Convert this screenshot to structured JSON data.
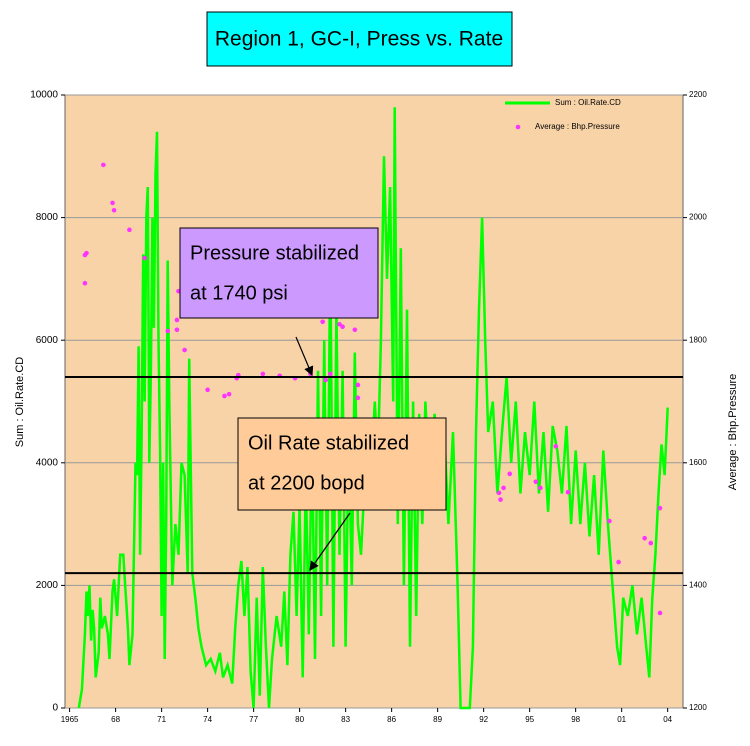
{
  "chart_data": {
    "type": "line",
    "title": "Region 1, GC-I, Press vs. Rate",
    "y_label": "Sum : Oil.Rate.CD",
    "y2_label": "Average : Bhp.Pressure",
    "xlim": [
      1964.7,
      2005.0
    ],
    "xticks": [
      {
        "value": 1965,
        "label": "1965"
      },
      {
        "value": 1968,
        "label": "68"
      },
      {
        "value": 1971,
        "label": "71"
      },
      {
        "value": 1974,
        "label": "74"
      },
      {
        "value": 1977,
        "label": "77"
      },
      {
        "value": 1980,
        "label": "80"
      },
      {
        "value": 1983,
        "label": "83"
      },
      {
        "value": 1986,
        "label": "86"
      },
      {
        "value": 1989,
        "label": "89"
      },
      {
        "value": 1992,
        "label": "92"
      },
      {
        "value": 1995,
        "label": "95"
      },
      {
        "value": 1998,
        "label": "98"
      },
      {
        "value": 2001,
        "label": "01"
      },
      {
        "value": 2004,
        "label": "04"
      }
    ],
    "ylim": [
      0,
      10000
    ],
    "yticks": [
      0,
      2000,
      4000,
      6000,
      8000,
      10000
    ],
    "y2lim": [
      1200,
      2200
    ],
    "y2ticks": [
      1200,
      1400,
      1600,
      1800,
      2000,
      2200
    ],
    "grid": true,
    "legend": "top-right",
    "series": [
      {
        "name": "Sum : Oil.Rate.CD",
        "type": "line",
        "color": "#00ff00",
        "x": [
          1965.6,
          1965.8,
          1966.0,
          1966.1,
          1966.2,
          1966.3,
          1966.4,
          1966.5,
          1966.6,
          1966.7,
          1966.9,
          1967.0,
          1967.1,
          1967.3,
          1967.5,
          1967.6,
          1967.8,
          1967.9,
          1968.1,
          1968.3,
          1968.5,
          1968.6,
          1968.8,
          1968.9,
          1969.1,
          1969.3,
          1969.4,
          1969.5,
          1969.6,
          1969.7,
          1969.8,
          1969.9,
          1970.0,
          1970.1,
          1970.2,
          1970.3,
          1970.4,
          1970.5,
          1970.6,
          1970.7,
          1970.8,
          1970.9,
          1971.0,
          1971.1,
          1971.2,
          1971.3,
          1971.4,
          1971.5,
          1971.6,
          1971.7,
          1971.9,
          1972.1,
          1972.3,
          1972.5,
          1972.7,
          1972.8,
          1972.9,
          1973.0,
          1973.2,
          1973.4,
          1973.6,
          1973.9,
          1974.2,
          1974.5,
          1974.8,
          1975.0,
          1975.3,
          1975.6,
          1975.8,
          1976.0,
          1976.2,
          1976.4,
          1976.6,
          1976.8,
          1977.0,
          1977.2,
          1977.4,
          1977.6,
          1977.8,
          1978.0,
          1978.2,
          1978.5,
          1978.8,
          1979.0,
          1979.2,
          1979.4,
          1979.6,
          1979.8,
          1980.0,
          1980.2,
          1980.4,
          1980.6,
          1980.8,
          1981.0,
          1981.2,
          1981.4,
          1981.6,
          1981.8,
          1982.0,
          1982.2,
          1982.4,
          1982.6,
          1982.8,
          1983.0,
          1983.2,
          1983.4,
          1983.6,
          1983.8,
          1984.0,
          1984.3,
          1984.6,
          1984.9,
          1985.1,
          1985.3,
          1985.5,
          1985.7,
          1985.9,
          1986.1,
          1986.2,
          1986.4,
          1986.6,
          1986.8,
          1987.0,
          1987.2,
          1987.4,
          1987.6,
          1987.8,
          1988.0,
          1988.2,
          1988.5,
          1988.8,
          1989.1,
          1989.4,
          1989.7,
          1990.0,
          1990.3,
          1990.5,
          1990.8,
          1991.1,
          1991.3,
          1991.5,
          1991.7,
          1991.9,
          1992.1,
          1992.3,
          1992.6,
          1992.9,
          1993.2,
          1993.5,
          1993.8,
          1994.1,
          1994.4,
          1994.7,
          1995.0,
          1995.3,
          1995.6,
          1995.9,
          1996.2,
          1996.5,
          1996.8,
          1997.1,
          1997.4,
          1997.7,
          1998.0,
          1998.3,
          1998.6,
          1998.9,
          1999.2,
          1999.5,
          1999.8,
          2000.1,
          2000.4,
          2000.7,
          2000.9,
          2001.1,
          2001.4,
          2001.7,
          2002.0,
          2002.3,
          2002.6,
          2002.8,
          2003.0,
          2003.2,
          2003.4,
          2003.6,
          2003.8,
          2004.0
        ],
        "values": [
          0,
          300,
          1200,
          1900,
          1500,
          2000,
          1100,
          1600,
          1300,
          500,
          900,
          1800,
          1300,
          1500,
          1200,
          800,
          1900,
          2100,
          1500,
          2500,
          2500,
          2100,
          1300,
          700,
          1200,
          4000,
          3800,
          5900,
          2500,
          4500,
          7400,
          5000,
          8000,
          8500,
          4000,
          5500,
          8000,
          6200,
          8700,
          9400,
          6000,
          4200,
          1500,
          4000,
          800,
          3000,
          7300,
          5000,
          3500,
          2000,
          3000,
          2500,
          4000,
          3800,
          2200,
          5700,
          4000,
          2200,
          1800,
          1300,
          1000,
          700,
          800,
          600,
          900,
          500,
          700,
          400,
          1300,
          2000,
          2400,
          1500,
          2300,
          600,
          0,
          1800,
          200,
          2300,
          1000,
          0,
          800,
          1500,
          1000,
          1900,
          700,
          2500,
          3200,
          1500,
          3300,
          500,
          3800,
          1200,
          4500,
          800,
          5500,
          1500,
          6000,
          2000,
          7500,
          1000,
          6500,
          2500,
          5500,
          1000,
          4500,
          2000,
          5800,
          3000,
          2500,
          4000,
          3500,
          5000,
          4000,
          6000,
          9000,
          7000,
          8500,
          5000,
          9800,
          3000,
          7500,
          2000,
          6500,
          1000,
          5000,
          1500,
          4800,
          3000,
          5000,
          3500,
          4800,
          3500,
          4700,
          3000,
          4500,
          2000,
          0,
          0,
          0,
          1000,
          4500,
          6500,
          8000,
          6000,
          4500,
          5000,
          3500,
          4500,
          5400,
          4000,
          5000,
          3500,
          4500,
          3800,
          5000,
          3500,
          4500,
          3200,
          4600,
          4200,
          3500,
          4600,
          3000,
          4200,
          3000,
          4000,
          2800,
          3800,
          2500,
          4200,
          3000,
          2000,
          1000,
          700,
          1800,
          1500,
          2000,
          1200,
          1800,
          1000,
          500,
          1800,
          2500,
          3500,
          4300,
          3800,
          4900
        ]
      },
      {
        "name": "Average : Bhp.Pressure",
        "type": "scatter",
        "axis": "y2",
        "color": "#ff33ff",
        "x": [
          1966.0,
          1966.1,
          1966.0,
          1967.2,
          1967.8,
          1967.9,
          1968.9,
          1969.9,
          1971.4,
          1972.0,
          1972.0,
          1972.1,
          1972.5,
          1974.0,
          1975.1,
          1975.4,
          1975.9,
          1976.0,
          1977.6,
          1978.7,
          1979.7,
          1980.7,
          1981.7,
          1982.0,
          1981.5,
          1982.6,
          1982.8,
          1983.6,
          1983.8,
          1983.8,
          1993.0,
          1993.1,
          1993.3,
          1993.7,
          1995.4,
          1995.7,
          1996.7,
          1997.5,
          2000.2,
          2000.8,
          2002.5,
          2002.9,
          2003.5,
          2003.5
        ],
        "values": [
          1939,
          1942,
          1893,
          2086,
          2024,
          2012,
          1980,
          1934,
          1815,
          1817,
          1833,
          1880,
          1784,
          1719,
          1709,
          1712,
          1738,
          1743,
          1745,
          1742,
          1738,
          1745,
          1735,
          1745,
          1830,
          1826,
          1822,
          1817,
          1727,
          1706,
          1551,
          1540,
          1559,
          1582,
          1569,
          1559,
          1627,
          1552,
          1505,
          1438,
          1477,
          1469,
          1526,
          1355
        ]
      }
    ],
    "reference_lines": [
      {
        "axis": "y2",
        "value": 1740
      },
      {
        "axis": "y",
        "value": 2200
      }
    ],
    "annotations": [
      {
        "lines": [
          "Pressure stabilized",
          "at 1740 psi"
        ],
        "color": "#cc99ff"
      },
      {
        "lines": [
          "Oil Rate stabilized",
          "at 2200 bopd"
        ],
        "color": "#ffcc99"
      }
    ],
    "title_color": "#00ffff",
    "plot_color": "#f8d3a8"
  }
}
